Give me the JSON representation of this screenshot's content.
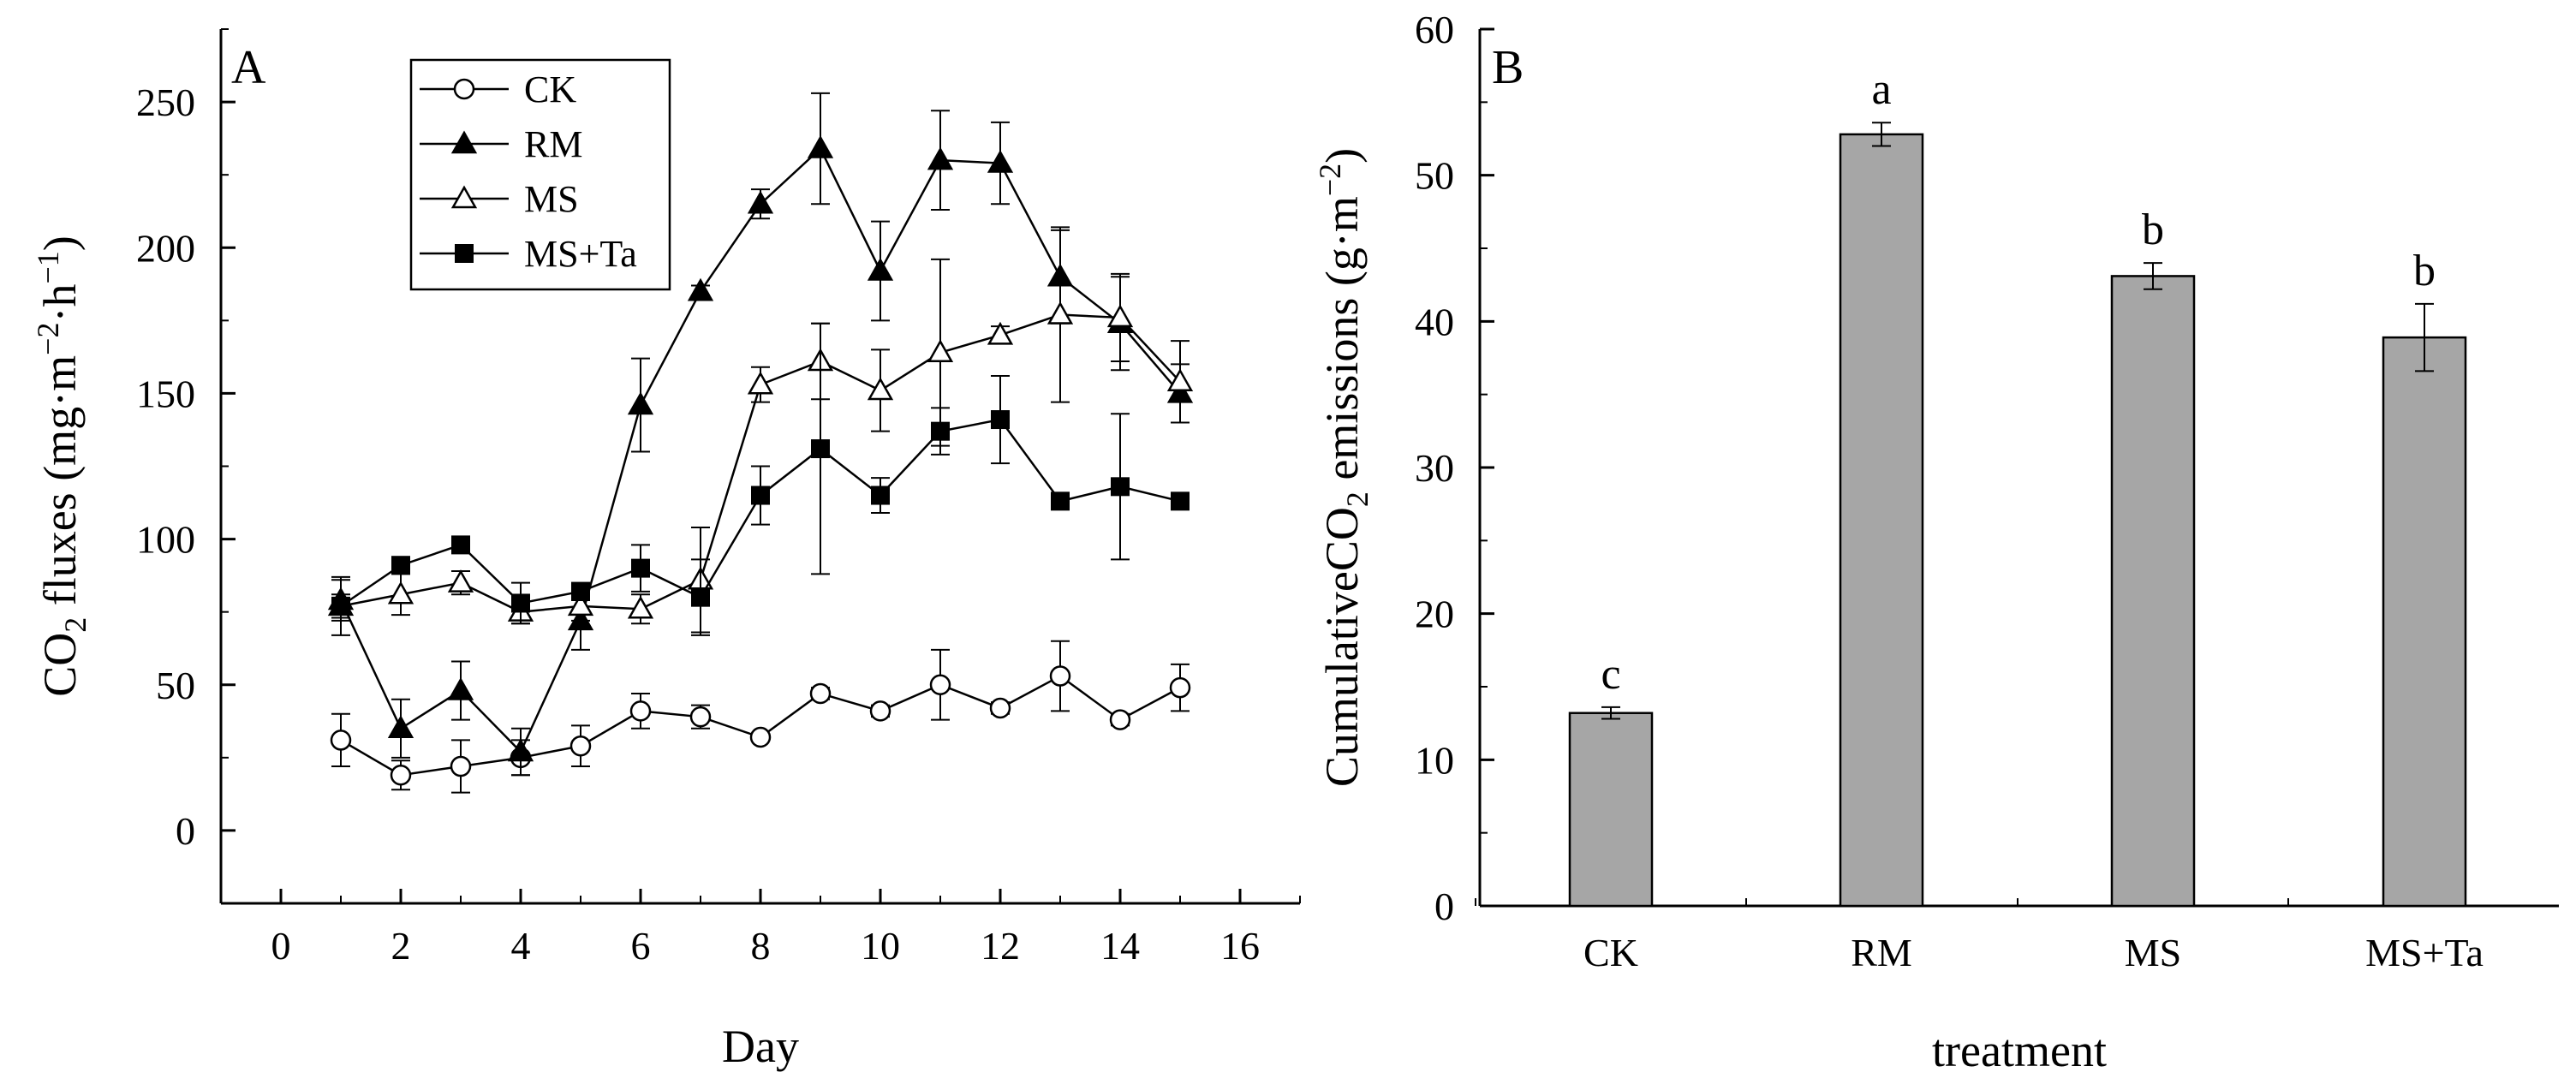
{
  "chart_data": [
    {
      "type": "line",
      "panel_label": "A",
      "xlabel": "Day",
      "ylabel": "CO2 fluxes (mg·m−2·h−1)",
      "ylabel_parts": {
        "pre": "CO",
        "sub": "2",
        "mid": " fluxes (mg·m",
        "sup1": "−2",
        "mid2": "·h",
        "sup2": "−1",
        "post": ")"
      },
      "xlim": [
        -1,
        17
      ],
      "ylim": [
        -25,
        275
      ],
      "xticks": [
        0,
        2,
        4,
        6,
        8,
        10,
        12,
        14,
        16
      ],
      "yticks": [
        0,
        50,
        100,
        150,
        200,
        250
      ],
      "x": [
        1,
        2,
        3,
        4,
        5,
        6,
        7,
        8,
        9,
        10,
        11,
        12,
        13,
        14,
        15
      ],
      "legend_position": "top-left",
      "series": [
        {
          "name": "CK",
          "marker": "open-circle",
          "values": [
            31,
            19,
            22,
            25,
            29,
            41,
            39,
            32,
            47,
            41,
            50,
            42,
            53,
            38,
            49
          ],
          "errors": [
            9,
            5,
            9,
            6,
            7,
            6,
            4,
            1,
            2,
            2,
            12,
            2,
            12,
            2,
            8
          ]
        },
        {
          "name": "RM",
          "marker": "filled-triangle",
          "values": [
            79,
            35,
            48,
            27,
            72,
            146,
            185,
            215,
            234,
            192,
            230,
            229,
            190,
            174,
            150
          ],
          "errors": [
            7,
            10,
            10,
            8,
            10,
            16,
            2,
            5,
            19,
            17,
            17,
            14,
            16,
            16,
            10
          ]
        },
        {
          "name": "MS",
          "marker": "open-triangle",
          "values": [
            77,
            81,
            85,
            75,
            77,
            76,
            86,
            153,
            161,
            151,
            164,
            170,
            177,
            176,
            154
          ],
          "errors": [
            4,
            7,
            4,
            4,
            5,
            5,
            18,
            6,
            13,
            14,
            32,
            3,
            30,
            15,
            14
          ]
        },
        {
          "name": "MS+Ta",
          "marker": "filled-square",
          "values": [
            77,
            91,
            98,
            78,
            82,
            90,
            80,
            115,
            131,
            115,
            137,
            141,
            113,
            118,
            113
          ],
          "errors": [
            10,
            2,
            2,
            7,
            3,
            8,
            13,
            10,
            43,
            6,
            8,
            15,
            2,
            25,
            2
          ]
        }
      ]
    },
    {
      "type": "bar",
      "panel_label": "B",
      "xlabel": "treatment",
      "ylabel": "CumulativeCO2 emissions (g·m−2)",
      "ylabel_parts": {
        "pre": "CumulativeCO",
        "sub": "2",
        "mid": " emissions (g·m",
        "sup1": "−2",
        "post": ")"
      },
      "ylim": [
        0,
        60
      ],
      "yticks": [
        0,
        10,
        20,
        30,
        40,
        50,
        60
      ],
      "categories": [
        "CK",
        "RM",
        "MS",
        "MS+Ta"
      ],
      "values": [
        13.2,
        52.8,
        43.1,
        38.9
      ],
      "errors": [
        0.4,
        0.8,
        0.9,
        2.3
      ],
      "significance": [
        "c",
        "a",
        "b",
        "b"
      ],
      "bar_color": "#a6a6a6"
    }
  ]
}
